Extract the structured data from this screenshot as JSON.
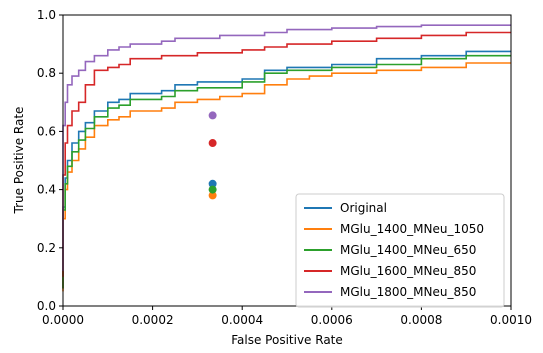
{
  "chart_data": {
    "type": "line",
    "title": "",
    "xlabel": "False Positive Rate",
    "ylabel": "True Positive Rate",
    "xlim": [
      0.0,
      0.001
    ],
    "ylim": [
      0.0,
      1.0
    ],
    "xticks": [
      0.0,
      0.0002,
      0.0004,
      0.0006,
      0.0008,
      0.001
    ],
    "xtick_labels": [
      "0.0000",
      "0.0002",
      "0.0004",
      "0.0006",
      "0.0008",
      "0.0010"
    ],
    "yticks": [
      0.0,
      0.2,
      0.4,
      0.6,
      0.8,
      1.0
    ],
    "ytick_labels": [
      "0.0",
      "0.2",
      "0.4",
      "0.6",
      "0.8",
      "1.0"
    ],
    "grid": false,
    "legend_position": "lower-right",
    "series": [
      {
        "name": "Original",
        "color": "#1f77b4",
        "x": [
          0,
          5e-06,
          1e-05,
          2e-05,
          3.5e-05,
          5e-05,
          7e-05,
          0.0001,
          0.000125,
          0.00015,
          0.00022,
          0.00025,
          0.0003,
          0.00035,
          0.0004,
          0.00045,
          0.0005,
          0.00055,
          0.0006,
          0.0007,
          0.0008,
          0.0009,
          0.001
        ],
        "y": [
          0.06,
          0.34,
          0.44,
          0.5,
          0.56,
          0.6,
          0.63,
          0.67,
          0.7,
          0.71,
          0.73,
          0.74,
          0.76,
          0.77,
          0.77,
          0.78,
          0.81,
          0.82,
          0.82,
          0.83,
          0.85,
          0.86,
          0.875
        ]
      },
      {
        "name": "MGlu_1400_MNeu_1050",
        "color": "#ff7f0e",
        "x": [
          0,
          5e-06,
          1e-05,
          2e-05,
          3.5e-05,
          5e-05,
          7e-05,
          0.0001,
          0.000125,
          0.00015,
          0.00022,
          0.00025,
          0.0003,
          0.00035,
          0.0004,
          0.00045,
          0.0005,
          0.00055,
          0.0006,
          0.0007,
          0.0008,
          0.0009,
          0.001
        ],
        "y": [
          0.05,
          0.3,
          0.4,
          0.46,
          0.5,
          0.54,
          0.58,
          0.62,
          0.64,
          0.65,
          0.67,
          0.68,
          0.7,
          0.71,
          0.72,
          0.73,
          0.76,
          0.78,
          0.79,
          0.8,
          0.81,
          0.82,
          0.835
        ]
      },
      {
        "name": "MGlu_1400_MNeu_650",
        "color": "#2ca02c",
        "x": [
          0,
          5e-06,
          1e-05,
          2e-05,
          3.5e-05,
          5e-05,
          7e-05,
          0.0001,
          0.000125,
          0.00015,
          0.00022,
          0.00025,
          0.0003,
          0.00035,
          0.0004,
          0.00045,
          0.0005,
          0.00055,
          0.0006,
          0.0007,
          0.0008,
          0.0009,
          0.001
        ],
        "y": [
          0.06,
          0.33,
          0.42,
          0.48,
          0.53,
          0.57,
          0.61,
          0.65,
          0.68,
          0.69,
          0.71,
          0.72,
          0.74,
          0.75,
          0.75,
          0.77,
          0.8,
          0.81,
          0.81,
          0.82,
          0.83,
          0.85,
          0.86
        ]
      },
      {
        "name": "MGlu_1600_MNeu_850",
        "color": "#d62728",
        "x": [
          0,
          5e-06,
          1e-05,
          2e-05,
          3.5e-05,
          5e-05,
          7e-05,
          0.0001,
          0.000125,
          0.00015,
          0.00022,
          0.00025,
          0.0003,
          0.00035,
          0.0004,
          0.00045,
          0.0005,
          0.00055,
          0.0006,
          0.0007,
          0.0008,
          0.0009,
          0.001
        ],
        "y": [
          0.1,
          0.45,
          0.56,
          0.62,
          0.67,
          0.7,
          0.76,
          0.81,
          0.82,
          0.83,
          0.85,
          0.86,
          0.86,
          0.87,
          0.87,
          0.88,
          0.89,
          0.9,
          0.9,
          0.91,
          0.92,
          0.93,
          0.94
        ]
      },
      {
        "name": "MGlu_1800_MNeu_850",
        "color": "#9467bd",
        "x": [
          0,
          5e-06,
          1e-05,
          2e-05,
          3.5e-05,
          5e-05,
          7e-05,
          0.0001,
          0.000125,
          0.00015,
          0.00022,
          0.00025,
          0.0003,
          0.00035,
          0.0004,
          0.00045,
          0.0005,
          0.00055,
          0.0006,
          0.0007,
          0.0008,
          0.0009,
          0.001
        ],
        "y": [
          0.12,
          0.62,
          0.7,
          0.76,
          0.79,
          0.81,
          0.84,
          0.86,
          0.88,
          0.89,
          0.9,
          0.91,
          0.92,
          0.92,
          0.93,
          0.93,
          0.94,
          0.95,
          0.95,
          0.955,
          0.96,
          0.965,
          0.965
        ]
      }
    ],
    "points": [
      {
        "series": "Original",
        "x": 0.000334,
        "y": 0.42,
        "color": "#1f77b4"
      },
      {
        "series": "MGlu_1400_MNeu_1050",
        "x": 0.000334,
        "y": 0.38,
        "color": "#ff7f0e"
      },
      {
        "series": "MGlu_1400_MNeu_650",
        "x": 0.000334,
        "y": 0.4,
        "color": "#2ca02c"
      },
      {
        "series": "MGlu_1600_MNeu_850",
        "x": 0.000334,
        "y": 0.56,
        "color": "#d62728"
      },
      {
        "series": "MGlu_1800_MNeu_850",
        "x": 0.000334,
        "y": 0.655,
        "color": "#9467bd"
      }
    ]
  }
}
